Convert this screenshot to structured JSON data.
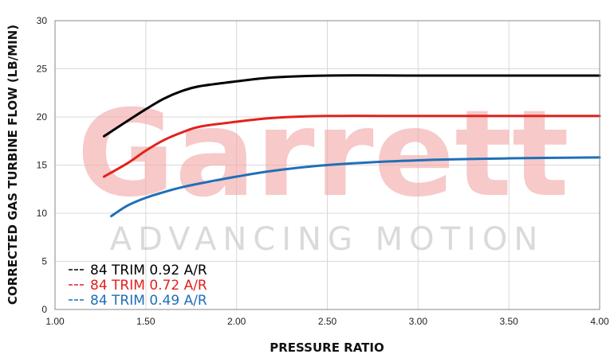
{
  "watermark": {
    "brand": "Garrett",
    "tagline": "ADVANCING MOTION"
  },
  "chart_data": {
    "type": "line",
    "title": "",
    "xlabel": "PRESSURE RATIO",
    "ylabel": "CORRECTED GAS TURBINE FLOW (LB/MIN)",
    "xlim": [
      1.0,
      4.0
    ],
    "ylim": [
      0,
      30
    ],
    "x_ticks": [
      "1.00",
      "1.50",
      "2.00",
      "2.50",
      "3.00",
      "3.50",
      "4.00"
    ],
    "y_ticks": [
      "0",
      "5",
      "10",
      "15",
      "20",
      "25",
      "30"
    ],
    "grid": true,
    "legend_position": "bottom-left",
    "series": [
      {
        "name": "84 TRIM 0.92 A/R",
        "color": "#000000",
        "points": [
          [
            1.27,
            18.0
          ],
          [
            1.4,
            19.6
          ],
          [
            1.5,
            20.8
          ],
          [
            1.6,
            21.9
          ],
          [
            1.7,
            22.7
          ],
          [
            1.8,
            23.2
          ],
          [
            2.0,
            23.7
          ],
          [
            2.2,
            24.1
          ],
          [
            2.5,
            24.3
          ],
          [
            3.0,
            24.3
          ],
          [
            3.5,
            24.3
          ],
          [
            4.0,
            24.3
          ]
        ]
      },
      {
        "name": "84 TRIM 0.72 A/R",
        "color": "#e3211c",
        "points": [
          [
            1.27,
            13.8
          ],
          [
            1.4,
            15.2
          ],
          [
            1.5,
            16.5
          ],
          [
            1.6,
            17.6
          ],
          [
            1.7,
            18.4
          ],
          [
            1.8,
            19.0
          ],
          [
            2.0,
            19.5
          ],
          [
            2.2,
            19.9
          ],
          [
            2.5,
            20.1
          ],
          [
            3.0,
            20.1
          ],
          [
            3.5,
            20.1
          ],
          [
            4.0,
            20.1
          ]
        ]
      },
      {
        "name": "84 TRIM 0.49 A/R",
        "color": "#1f6fb8",
        "points": [
          [
            1.31,
            9.7
          ],
          [
            1.4,
            10.8
          ],
          [
            1.5,
            11.6
          ],
          [
            1.6,
            12.2
          ],
          [
            1.7,
            12.7
          ],
          [
            1.8,
            13.1
          ],
          [
            2.0,
            13.8
          ],
          [
            2.2,
            14.4
          ],
          [
            2.5,
            15.0
          ],
          [
            3.0,
            15.5
          ],
          [
            3.5,
            15.7
          ],
          [
            4.0,
            15.8
          ]
        ]
      }
    ]
  }
}
